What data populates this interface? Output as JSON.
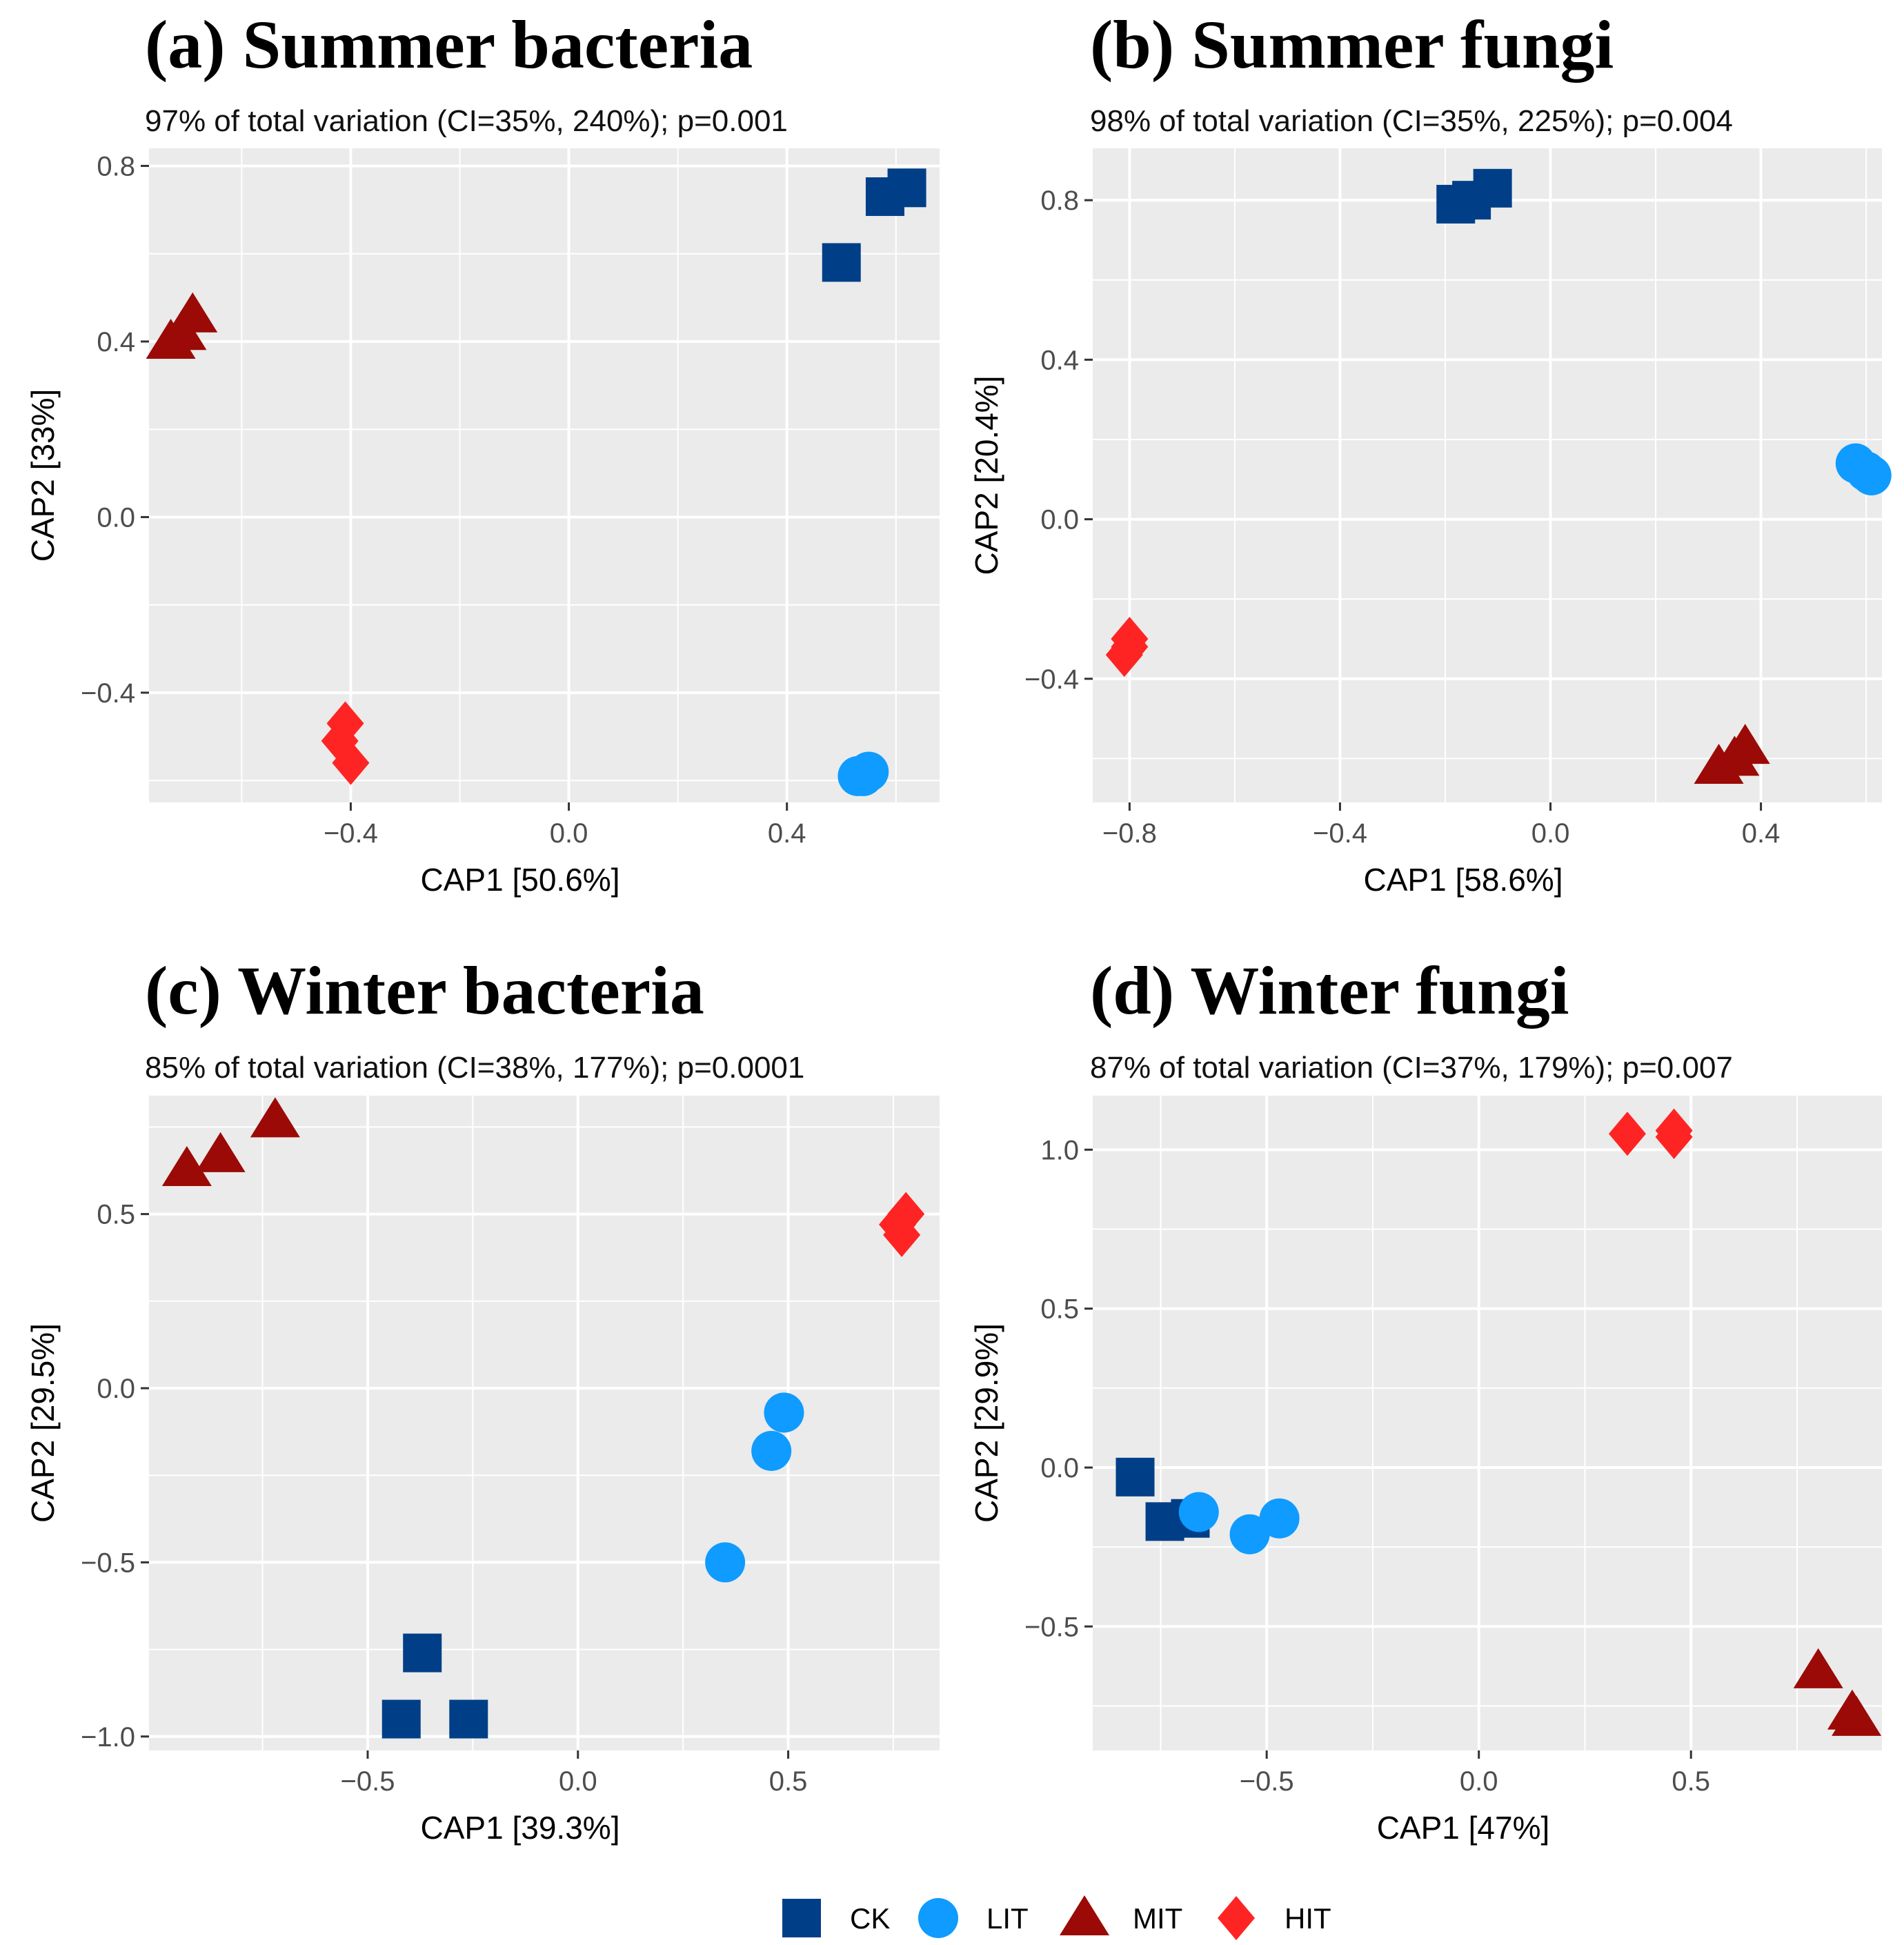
{
  "chart_data": [
    {
      "type": "scatter",
      "title": "(a) Summer bacteria",
      "subtitle": "97% of total variation (CI=35%, 240%); p=0.001",
      "xlabel": "CAP1   [50.6%]",
      "ylabel": "CAP2   [33%]",
      "xlim": [
        -0.77,
        0.68
      ],
      "ylim": [
        -0.65,
        0.84
      ],
      "xticks": [
        -0.4,
        0.0,
        0.4
      ],
      "xtick_labels": [
        "−0.4",
        "0.0",
        "0.4"
      ],
      "yticks": [
        -0.4,
        0.0,
        0.4,
        0.8
      ],
      "ytick_labels": [
        "−0.4",
        "0.0",
        "0.4",
        "0.8"
      ],
      "series": [
        {
          "name": "CK",
          "points": [
            [
              0.5,
              0.58
            ],
            [
              0.58,
              0.73
            ],
            [
              0.62,
              0.75
            ]
          ]
        },
        {
          "name": "LIT",
          "points": [
            [
              0.53,
              -0.59
            ],
            [
              0.54,
              -0.59
            ],
            [
              0.55,
              -0.58
            ]
          ]
        },
        {
          "name": "MIT",
          "points": [
            [
              -0.73,
              0.4
            ],
            [
              -0.71,
              0.42
            ],
            [
              -0.69,
              0.46
            ]
          ]
        },
        {
          "name": "HIT",
          "points": [
            [
              -0.41,
              -0.47
            ],
            [
              -0.42,
              -0.51
            ],
            [
              -0.4,
              -0.56
            ]
          ]
        }
      ]
    },
    {
      "type": "scatter",
      "title": "(b) Summer fungi",
      "subtitle": "98% of total variation  (CI=35%, 225%); p=0.004",
      "xlabel": "CAP1   [58.6%]",
      "ylabel": "CAP2   [20.4%]",
      "xlim": [
        -0.87,
        0.63
      ],
      "ylim": [
        -0.71,
        0.93
      ],
      "xticks": [
        -0.8,
        -0.4,
        0.0,
        0.4
      ],
      "xtick_labels": [
        "−0.8",
        "−0.4",
        "0.0",
        "0.4"
      ],
      "yticks": [
        -0.4,
        0.0,
        0.4,
        0.8
      ],
      "ytick_labels": [
        "−0.4",
        "0.0",
        "0.4",
        "0.8"
      ],
      "series": [
        {
          "name": "CK",
          "points": [
            [
              -0.18,
              0.79
            ],
            [
              -0.15,
              0.8
            ],
            [
              -0.11,
              0.83
            ]
          ]
        },
        {
          "name": "LIT",
          "points": [
            [
              0.58,
              0.14
            ],
            [
              0.6,
              0.12
            ],
            [
              0.61,
              0.11
            ]
          ]
        },
        {
          "name": "MIT",
          "points": [
            [
              0.32,
              -0.62
            ],
            [
              0.35,
              -0.6
            ],
            [
              0.37,
              -0.57
            ]
          ]
        },
        {
          "name": "HIT",
          "points": [
            [
              -0.8,
              -0.3
            ],
            [
              -0.8,
              -0.32
            ],
            [
              -0.81,
              -0.34
            ]
          ]
        }
      ]
    },
    {
      "type": "scatter",
      "title": "(c) Winter bacteria",
      "subtitle": "85% of total variation (CI=38%, 177%); p=0.0001",
      "xlabel": "CAP1   [39.3%]",
      "ylabel": "CAP2   [29.5%]",
      "xlim": [
        -1.02,
        0.86
      ],
      "ylim": [
        -1.04,
        0.84
      ],
      "xticks": [
        -0.5,
        0.0,
        0.5
      ],
      "xtick_labels": [
        "−0.5",
        "0.0",
        "0.5"
      ],
      "yticks": [
        -1.0,
        -0.5,
        0.0,
        0.5
      ],
      "ytick_labels": [
        "−1.0",
        "−0.5",
        "0.0",
        "0.5"
      ],
      "series": [
        {
          "name": "CK",
          "points": [
            [
              -0.37,
              -0.76
            ],
            [
              -0.42,
              -0.95
            ],
            [
              -0.26,
              -0.95
            ]
          ]
        },
        {
          "name": "LIT",
          "points": [
            [
              0.49,
              -0.07
            ],
            [
              0.46,
              -0.18
            ],
            [
              0.35,
              -0.5
            ]
          ]
        },
        {
          "name": "MIT",
          "points": [
            [
              -0.93,
              0.63
            ],
            [
              -0.85,
              0.67
            ],
            [
              -0.72,
              0.77
            ]
          ]
        },
        {
          "name": "HIT",
          "points": [
            [
              0.78,
              0.5
            ],
            [
              0.76,
              0.47
            ],
            [
              0.77,
              0.44
            ]
          ]
        }
      ]
    },
    {
      "type": "scatter",
      "title": "(d) Winter fungi",
      "subtitle": "87% of total variation (CI=37%, 179%); p=0.007",
      "xlabel": "CAP1   [47%]",
      "ylabel": "CAP2   [29.9%]",
      "xlim": [
        -0.91,
        0.95
      ],
      "ylim": [
        -0.89,
        1.17
      ],
      "xticks": [
        -0.5,
        0.0,
        0.5
      ],
      "xtick_labels": [
        "−0.5",
        "0.0",
        "0.5"
      ],
      "yticks": [
        -0.5,
        0.0,
        0.5,
        1.0
      ],
      "ytick_labels": [
        "−0.5",
        "0.0",
        "0.5",
        "1.0"
      ],
      "series": [
        {
          "name": "CK",
          "points": [
            [
              -0.81,
              -0.03
            ],
            [
              -0.74,
              -0.17
            ],
            [
              -0.68,
              -0.16
            ]
          ]
        },
        {
          "name": "LIT",
          "points": [
            [
              -0.66,
              -0.14
            ],
            [
              -0.54,
              -0.21
            ],
            [
              -0.47,
              -0.16
            ]
          ]
        },
        {
          "name": "MIT",
          "points": [
            [
              0.8,
              -0.64
            ],
            [
              0.88,
              -0.77
            ],
            [
              0.89,
              -0.79
            ]
          ]
        },
        {
          "name": "HIT",
          "points": [
            [
              0.35,
              1.05
            ],
            [
              0.46,
              1.06
            ],
            [
              0.46,
              1.04
            ]
          ]
        }
      ]
    }
  ],
  "legend": {
    "placement": "bottom-center",
    "items": [
      {
        "name": "CK",
        "shape": "square",
        "color": "#003f87"
      },
      {
        "name": "LIT",
        "shape": "circle",
        "color": "#0f9bff"
      },
      {
        "name": "MIT",
        "shape": "triangle",
        "color": "#9b0a06"
      },
      {
        "name": "HIT",
        "shape": "diamond",
        "color": "#ff2424"
      }
    ]
  },
  "colors": {
    "panel_background": "#ebebeb",
    "grid": "#ffffff",
    "tick_text": "#4d4d4d"
  }
}
